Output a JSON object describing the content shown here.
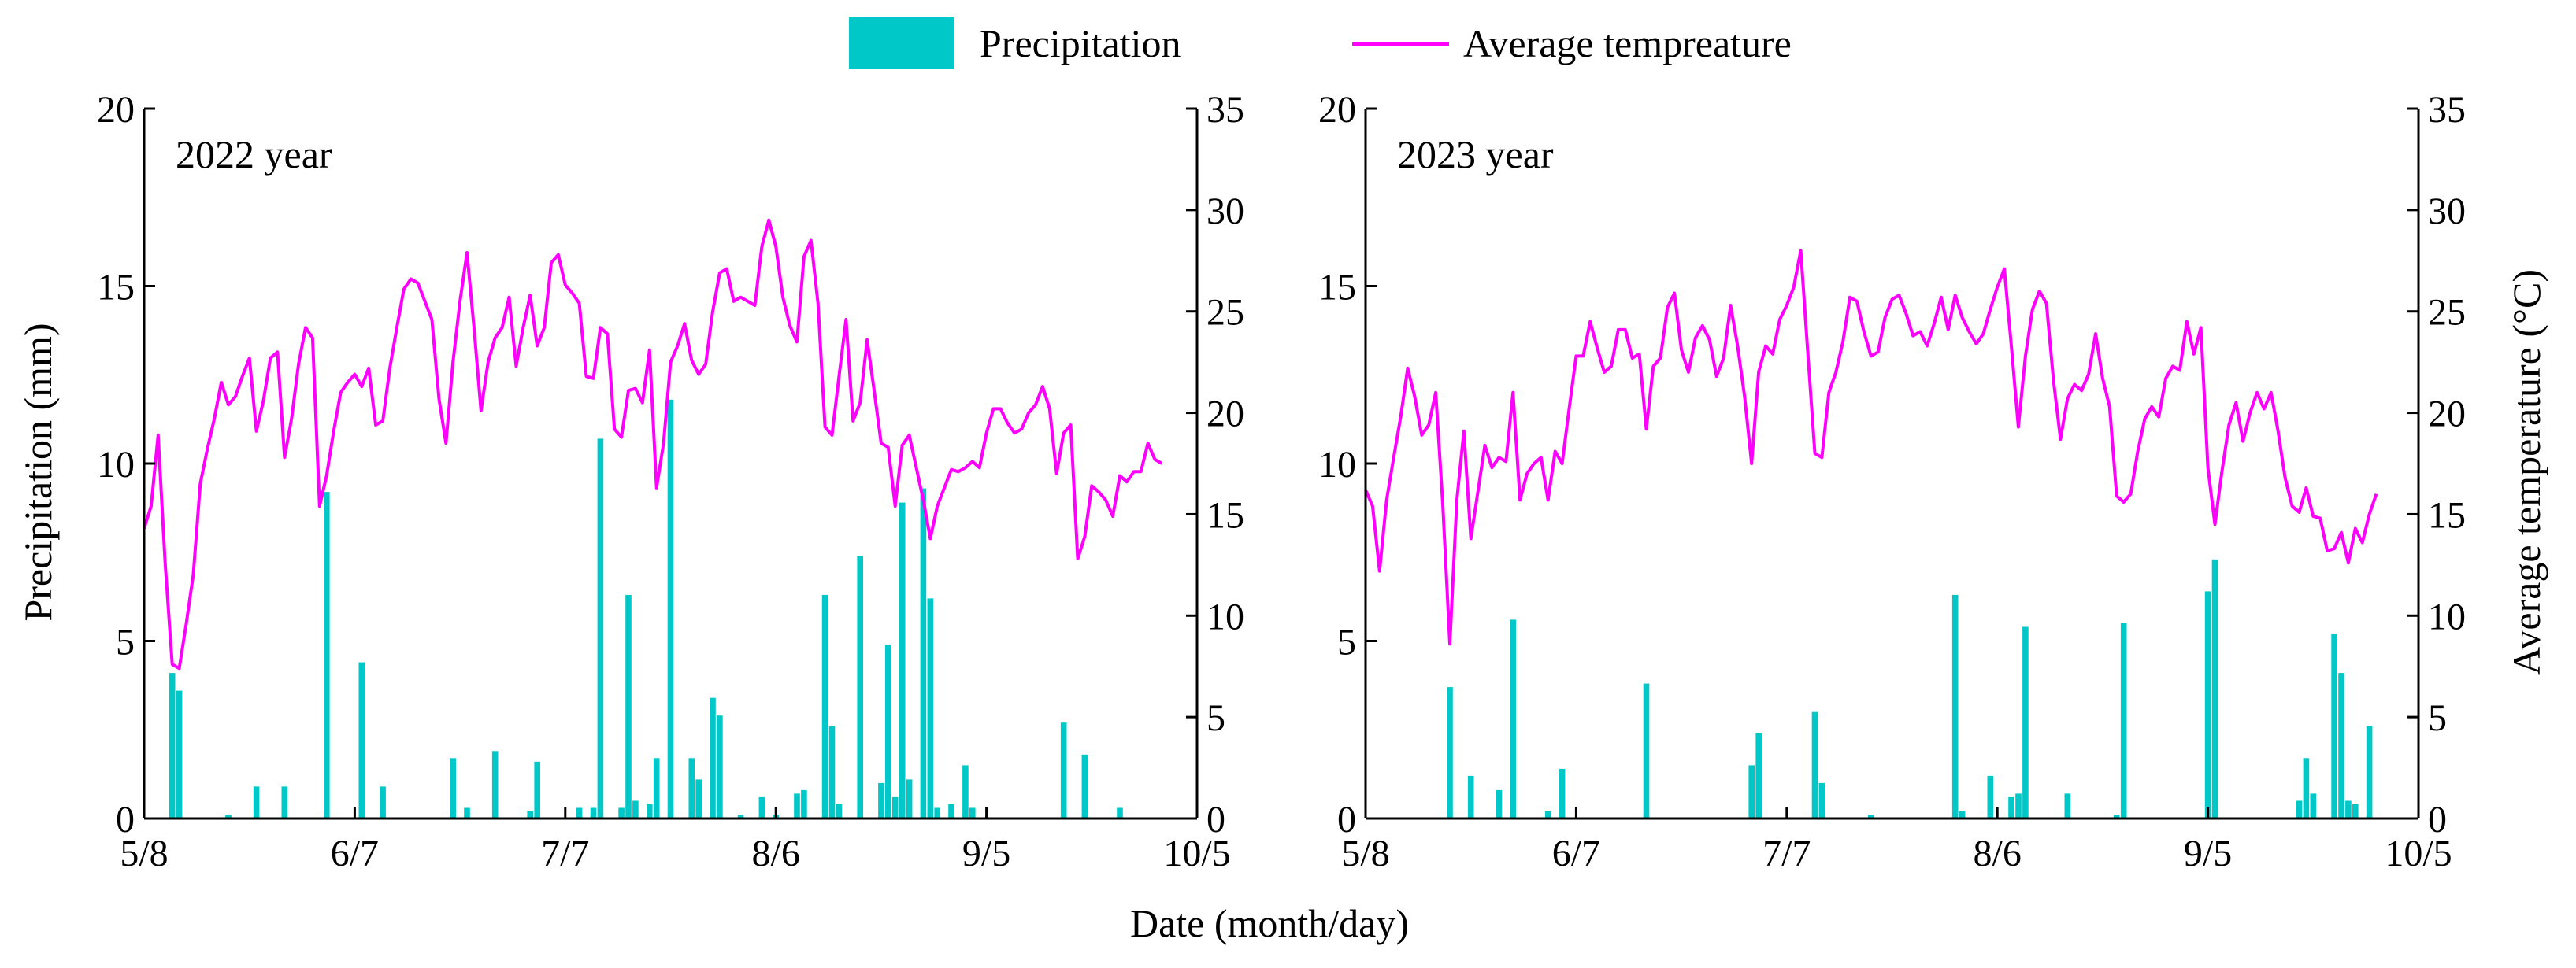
{
  "legend": {
    "precip_label": "Precipitation",
    "temp_label": "Average tempreature"
  },
  "colors": {
    "precip": "#00c8c8",
    "temp": "#ff00ff"
  },
  "chart_data": [
    {
      "type": "bar+line",
      "title": "2022 year",
      "xlabel": "Date (month/day)",
      "ylabel": "Precipitation (mm)",
      "y2label": "Average temperature (°C)",
      "x_range_days": [
        0,
        150
      ],
      "x_ticks": [
        {
          "day": 0,
          "label": "5/8"
        },
        {
          "day": 30,
          "label": "6/7"
        },
        {
          "day": 60,
          "label": "7/7"
        },
        {
          "day": 90,
          "label": "8/6"
        },
        {
          "day": 120,
          "label": "9/5"
        },
        {
          "day": 150,
          "label": "10/5"
        }
      ],
      "ylim": [
        0,
        20
      ],
      "y_ticks": [
        "0",
        "5",
        "10",
        "15",
        "20"
      ],
      "y2lim": [
        0,
        35
      ],
      "y2_ticks": [
        "0",
        "5",
        "10",
        "15",
        "20",
        "25",
        "30",
        "35"
      ],
      "precipitation": [
        {
          "day": 4,
          "mm": 4.1
        },
        {
          "day": 5,
          "mm": 3.6
        },
        {
          "day": 12,
          "mm": 0.1
        },
        {
          "day": 16,
          "mm": 0.9
        },
        {
          "day": 20,
          "mm": 0.9
        },
        {
          "day": 26,
          "mm": 9.2
        },
        {
          "day": 31,
          "mm": 4.4
        },
        {
          "day": 34,
          "mm": 0.9
        },
        {
          "day": 44,
          "mm": 1.7
        },
        {
          "day": 46,
          "mm": 0.3
        },
        {
          "day": 50,
          "mm": 1.9
        },
        {
          "day": 55,
          "mm": 0.2
        },
        {
          "day": 56,
          "mm": 1.6
        },
        {
          "day": 62,
          "mm": 0.3
        },
        {
          "day": 64,
          "mm": 0.3
        },
        {
          "day": 65,
          "mm": 10.7
        },
        {
          "day": 68,
          "mm": 0.3
        },
        {
          "day": 69,
          "mm": 6.3
        },
        {
          "day": 70,
          "mm": 0.5
        },
        {
          "day": 72,
          "mm": 0.4
        },
        {
          "day": 73,
          "mm": 1.7
        },
        {
          "day": 75,
          "mm": 11.8
        },
        {
          "day": 78,
          "mm": 1.7
        },
        {
          "day": 79,
          "mm": 1.1
        },
        {
          "day": 81,
          "mm": 3.4
        },
        {
          "day": 82,
          "mm": 2.9
        },
        {
          "day": 85,
          "mm": 0.1
        },
        {
          "day": 88,
          "mm": 0.6
        },
        {
          "day": 90,
          "mm": 0.1
        },
        {
          "day": 93,
          "mm": 0.7
        },
        {
          "day": 94,
          "mm": 0.8
        },
        {
          "day": 97,
          "mm": 6.3
        },
        {
          "day": 98,
          "mm": 2.6
        },
        {
          "day": 99,
          "mm": 0.4
        },
        {
          "day": 102,
          "mm": 7.4
        },
        {
          "day": 105,
          "mm": 1.0
        },
        {
          "day": 106,
          "mm": 4.9
        },
        {
          "day": 107,
          "mm": 0.6
        },
        {
          "day": 108,
          "mm": 8.9
        },
        {
          "day": 109,
          "mm": 1.1
        },
        {
          "day": 111,
          "mm": 9.3
        },
        {
          "day": 112,
          "mm": 6.2
        },
        {
          "day": 113,
          "mm": 0.3
        },
        {
          "day": 115,
          "mm": 0.4
        },
        {
          "day": 117,
          "mm": 1.5
        },
        {
          "day": 118,
          "mm": 0.3
        },
        {
          "day": 131,
          "mm": 2.7
        },
        {
          "day": 134,
          "mm": 1.8
        },
        {
          "day": 139,
          "mm": 0.3
        }
      ],
      "temperature": [
        14.3,
        15.4,
        18.9,
        12.6,
        7.6,
        7.4,
        9.6,
        12,
        16.5,
        18.2,
        19.7,
        21.5,
        20.4,
        20.8,
        21.8,
        22.7,
        19.1,
        20.6,
        22.7,
        23,
        17.8,
        19.7,
        22.4,
        24.2,
        23.7,
        15.4,
        16.9,
        19.1,
        21,
        21.5,
        21.9,
        21.3,
        22.2,
        19.4,
        19.6,
        22.2,
        24.2,
        26.1,
        26.6,
        26.4,
        25.5,
        24.6,
        20.7,
        18.5,
        22.5,
        25.5,
        27.9,
        24.2,
        20.1,
        22.5,
        23.7,
        24.2,
        25.7,
        22.3,
        24.2,
        25.8,
        23.3,
        24.2,
        27.4,
        27.8,
        26.3,
        25.9,
        25.4,
        21.8,
        21.7,
        24.2,
        23.9,
        19.2,
        18.8,
        21.1,
        21.2,
        20.5,
        23.1,
        16.3,
        18.5,
        22.5,
        23.3,
        24.4,
        22.6,
        21.9,
        22.4,
        25,
        26.9,
        27.1,
        25.5,
        25.7,
        25.5,
        25.3,
        28.2,
        29.5,
        28.2,
        25.7,
        24.3,
        23.5,
        27.7,
        28.5,
        25.4,
        19.3,
        18.9,
        21.8,
        24.6,
        19.6,
        20.5,
        23.6,
        21.1,
        18.5,
        18.3,
        15.4,
        18.4,
        18.9,
        17.3,
        15.7,
        13.8,
        15.4,
        16.3,
        17.2,
        17.1,
        17.3,
        17.6,
        17.3,
        19,
        20.2,
        20.2,
        19.5,
        19,
        19.2,
        20,
        20.4,
        21.3,
        20.2,
        17,
        19,
        19.4,
        12.8,
        13.9,
        16.4,
        16.1,
        15.7,
        14.9,
        16.9,
        16.6,
        17.1,
        17.1,
        18.5,
        17.7,
        17.5
      ]
    },
    {
      "type": "bar+line",
      "title": "2023 year",
      "xlabel": "Date (month/day)",
      "ylabel": "Precipitation (mm)",
      "y2label": "Average temperature (°C)",
      "x_range_days": [
        0,
        150
      ],
      "x_ticks": [
        {
          "day": 0,
          "label": "5/8"
        },
        {
          "day": 30,
          "label": "6/7"
        },
        {
          "day": 60,
          "label": "7/7"
        },
        {
          "day": 90,
          "label": "8/6"
        },
        {
          "day": 120,
          "label": "9/5"
        },
        {
          "day": 150,
          "label": "10/5"
        }
      ],
      "ylim": [
        0,
        20
      ],
      "y_ticks": [
        "0",
        "5",
        "10",
        "15",
        "20"
      ],
      "y2lim": [
        0,
        35
      ],
      "y2_ticks": [
        "0",
        "5",
        "10",
        "15",
        "20",
        "25",
        "30",
        "35"
      ],
      "precipitation": [
        {
          "day": 12,
          "mm": 3.7
        },
        {
          "day": 15,
          "mm": 1.2
        },
        {
          "day": 19,
          "mm": 0.8
        },
        {
          "day": 21,
          "mm": 5.6
        },
        {
          "day": 26,
          "mm": 0.2
        },
        {
          "day": 28,
          "mm": 1.4
        },
        {
          "day": 40,
          "mm": 3.8
        },
        {
          "day": 55,
          "mm": 1.5
        },
        {
          "day": 56,
          "mm": 2.4
        },
        {
          "day": 64,
          "mm": 3.0
        },
        {
          "day": 65,
          "mm": 1.0
        },
        {
          "day": 72,
          "mm": 0.1
        },
        {
          "day": 84,
          "mm": 6.3
        },
        {
          "day": 85,
          "mm": 0.2
        },
        {
          "day": 89,
          "mm": 1.2
        },
        {
          "day": 92,
          "mm": 0.6
        },
        {
          "day": 93,
          "mm": 0.7
        },
        {
          "day": 94,
          "mm": 5.4
        },
        {
          "day": 100,
          "mm": 0.7
        },
        {
          "day": 107,
          "mm": 0.1
        },
        {
          "day": 108,
          "mm": 5.5
        },
        {
          "day": 120,
          "mm": 6.4
        },
        {
          "day": 121,
          "mm": 7.3
        },
        {
          "day": 133,
          "mm": 0.5
        },
        {
          "day": 134,
          "mm": 1.7
        },
        {
          "day": 135,
          "mm": 0.7
        },
        {
          "day": 138,
          "mm": 5.2
        },
        {
          "day": 139,
          "mm": 4.1
        },
        {
          "day": 140,
          "mm": 0.5
        },
        {
          "day": 141,
          "mm": 0.4
        },
        {
          "day": 143,
          "mm": 2.6
        }
      ],
      "temperature": [
        16.2,
        15.4,
        12.2,
        15.7,
        17.8,
        19.8,
        22.2,
        20.8,
        18.9,
        19.4,
        21,
        15.5,
        8.6,
        15.7,
        19.1,
        13.8,
        16.1,
        18.4,
        17.3,
        17.8,
        17.6,
        21,
        15.7,
        17,
        17.5,
        17.8,
        15.7,
        18.1,
        17.5,
        20.2,
        22.8,
        22.8,
        24.5,
        23.2,
        22,
        22.3,
        24.1,
        24.1,
        22.7,
        22.9,
        19.2,
        22.3,
        22.7,
        25.2,
        25.9,
        23.1,
        22,
        23.7,
        24.3,
        23.6,
        21.8,
        22.7,
        25.3,
        23.3,
        20.8,
        17.5,
        22,
        23.3,
        22.9,
        24.6,
        25.3,
        26.2,
        28,
        23,
        18,
        17.8,
        21,
        22,
        23.5,
        25.7,
        25.5,
        24,
        22.8,
        23,
        24.7,
        25.6,
        25.8,
        24.9,
        23.8,
        24,
        23.3,
        24.4,
        25.7,
        24.1,
        25.8,
        24.7,
        24,
        23.4,
        23.9,
        25.1,
        26.2,
        27.1,
        23.3,
        19.3,
        22.8,
        25.1,
        26,
        25.4,
        21.6,
        18.7,
        20.7,
        21.4,
        21.1,
        21.9,
        23.9,
        21.7,
        20.3,
        15.9,
        15.6,
        16,
        18.1,
        19.7,
        20.3,
        19.8,
        21.7,
        22.3,
        22.1,
        24.5,
        22.9,
        24.2,
        17.3,
        14.5,
        17.1,
        19.4,
        20.5,
        18.6,
        20,
        21,
        20.2,
        21,
        19.1,
        16.8,
        15.4,
        15.1,
        16.3,
        14.9,
        14.8,
        13.2,
        13.3,
        14.1,
        12.6,
        14.3,
        13.6,
        15,
        16
      ]
    }
  ]
}
